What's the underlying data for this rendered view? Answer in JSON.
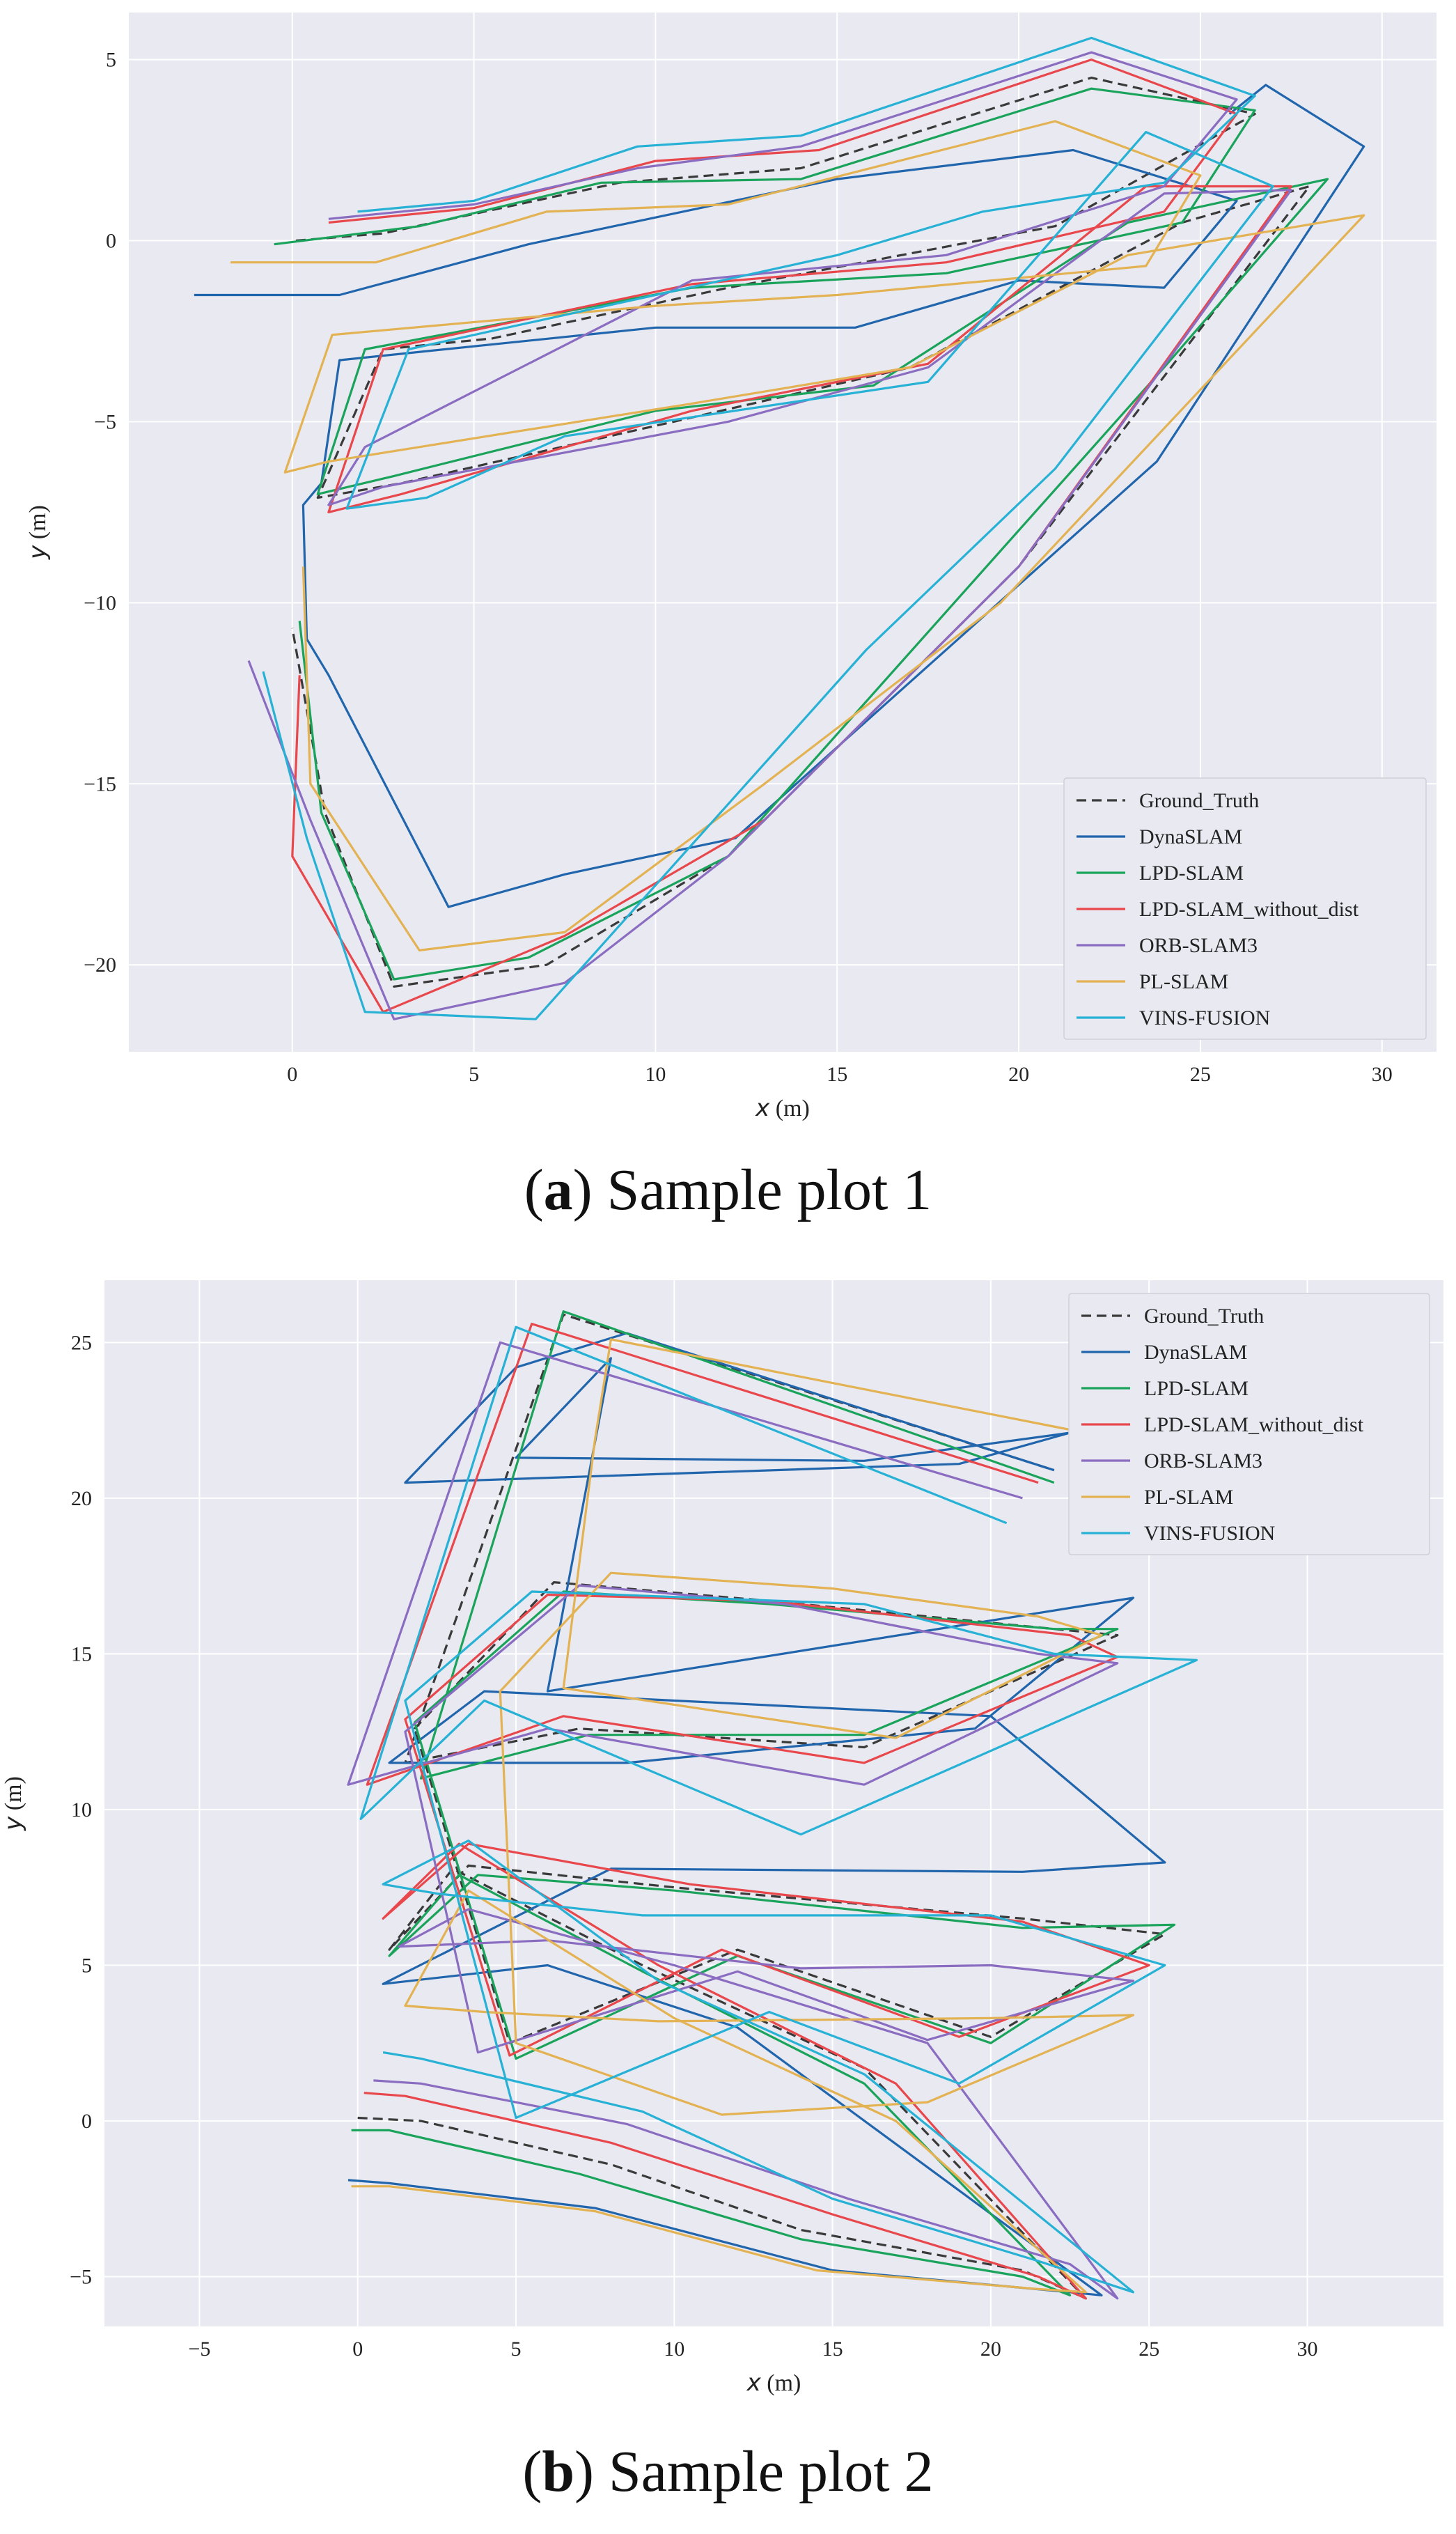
{
  "colors": {
    "Ground_Truth": "#3a3a3a",
    "DynaSLAM": "#2166ac",
    "LPD-SLAM": "#1aa35a",
    "LPD-SLAM_without_dist": "#e8474c",
    "ORB-SLAM3": "#8a6cc0",
    "PL-SLAM": "#e3b253",
    "VINS-FUSION": "#27b1d5"
  },
  "captions": [
    {
      "letter": "a",
      "text": " Sample plot 1",
      "open": "(",
      "close": ")"
    },
    {
      "letter": "b",
      "text": " Sample plot 2",
      "open": "(",
      "close": ")"
    }
  ],
  "chart_data": [
    {
      "type": "line",
      "title": "Sample plot 1",
      "xlabel": "x (m)",
      "ylabel": "y (m)",
      "xlabel_var": "x",
      "xlabel_unit": " (m)",
      "ylabel_var": "y",
      "ylabel_unit": " (m)",
      "xlim": [
        -4.5,
        31.5
      ],
      "ylim": [
        -22.4,
        6.3
      ],
      "xticks": [
        0,
        5,
        10,
        15,
        20,
        25,
        30
      ],
      "yticks": [
        5,
        0,
        -5,
        -10,
        -15,
        -20
      ],
      "xtick_labels": [
        "0",
        "5",
        "10",
        "15",
        "20",
        "25",
        "30"
      ],
      "ytick_labels": [
        "5",
        "0",
        "−5",
        "−10",
        "−15",
        "−20"
      ],
      "legend_position": "lower-right",
      "series": [
        {
          "name": "Ground_Truth",
          "dashed": true,
          "x": [
            0.1,
            2.5,
            9,
            14,
            22,
            26.5,
            21,
            12,
            5.5,
            2.5,
            0.7,
            3,
            10.5,
            17,
            24.5,
            28,
            20,
            12,
            7,
            2.8,
            0.9,
            0
          ],
          "y": [
            0,
            0.2,
            1.6,
            2,
            4.5,
            3.5,
            0.4,
            -1.3,
            -2.7,
            -3,
            -7.1,
            -6.7,
            -5,
            -3.5,
            0.5,
            1.5,
            -9,
            -17,
            -20,
            -20.6,
            -15.8,
            -10.7
          ]
        },
        {
          "name": "DynaSLAM",
          "dashed": false,
          "x": [
            -2.7,
            1.3,
            6.5,
            15,
            21.5,
            26,
            24,
            20,
            15.5,
            10,
            1.3,
            0.8,
            0.3,
            0.4,
            1,
            4.3,
            7.5,
            12.2,
            23.8,
            29.5,
            26.8,
            25.8
          ],
          "y": [
            -1.5,
            -1.5,
            -0.1,
            1.7,
            2.5,
            1.1,
            -1.3,
            -1.1,
            -2.4,
            -2.4,
            -3.3,
            -6.7,
            -7.3,
            -11,
            -12,
            -18.4,
            -17.5,
            -16.5,
            -6.1,
            2.6,
            4.3,
            3.5
          ]
        },
        {
          "name": "LPD-SLAM",
          "dashed": false,
          "x": [
            -0.5,
            3.5,
            8.5,
            14,
            22,
            26.5,
            24.5,
            18,
            11,
            2,
            0.7,
            2.8,
            10,
            16,
            23,
            28.5,
            24,
            12,
            6.5,
            2.8,
            0.8,
            0.2
          ],
          "y": [
            -0.1,
            0.4,
            1.6,
            1.7,
            4.2,
            3.6,
            0.5,
            -0.9,
            -1.3,
            -3,
            -7,
            -6.5,
            -4.7,
            -4,
            0.5,
            1.7,
            -3.5,
            -17,
            -19.8,
            -20.4,
            -15.8,
            -10.5
          ]
        },
        {
          "name": "LPD-SLAM_without_dist",
          "dashed": false,
          "x": [
            1,
            5,
            10,
            14.5,
            22,
            26,
            24,
            18,
            11,
            2.5,
            1,
            3,
            11,
            17.5,
            23.5,
            27.5,
            20,
            13,
            7.5,
            2.5,
            0,
            0.2
          ],
          "y": [
            0.5,
            0.9,
            2.2,
            2.5,
            5,
            3.5,
            0.8,
            -0.6,
            -1.2,
            -3,
            -7.5,
            -7,
            -4.7,
            -3.4,
            1.5,
            1.5,
            -9,
            -16,
            -19.2,
            -21.3,
            -17,
            -12
          ]
        },
        {
          "name": "ORB-SLAM3",
          "dashed": false,
          "x": [
            1,
            5,
            9.5,
            14,
            22,
            26,
            24,
            18,
            11,
            2,
            1,
            2.5,
            12,
            17.5,
            24,
            27.5,
            20,
            12,
            7.5,
            2.8,
            0.5,
            -1.2
          ],
          "y": [
            0.6,
            1,
            2,
            2.6,
            5.2,
            3.9,
            1.5,
            -0.4,
            -1.1,
            -5.7,
            -7.3,
            -6.8,
            -5,
            -3.5,
            1.3,
            1.4,
            -9,
            -17,
            -20.5,
            -21.5,
            -16,
            -11.6
          ]
        },
        {
          "name": "PL-SLAM",
          "dashed": false,
          "x": [
            -1.7,
            2.3,
            7,
            12,
            21,
            25,
            23.5,
            15,
            10,
            1.1,
            -0.2,
            1,
            11,
            17,
            23,
            29.5,
            19.5,
            13,
            7.5,
            3.5,
            0.5,
            0.3
          ],
          "y": [
            -0.6,
            -0.6,
            0.8,
            1,
            3.3,
            1.8,
            -0.7,
            -1.5,
            -1.8,
            -2.6,
            -6.4,
            -6.1,
            -4.5,
            -3.5,
            -0.4,
            0.7,
            -10,
            -15,
            -19.1,
            -19.6,
            -15,
            -9
          ]
        },
        {
          "name": "VINS-FUSION",
          "dashed": false,
          "x": [
            1.8,
            5,
            9.5,
            14,
            22,
            26.5,
            24,
            19,
            15,
            3.2,
            1.5,
            3.7,
            7.5,
            17.5,
            23.5,
            27,
            21,
            15.8,
            6.7,
            2,
            0.4,
            -0.8
          ],
          "y": [
            0.8,
            1.1,
            2.6,
            2.9,
            5.6,
            4,
            1.6,
            0.8,
            -0.4,
            -3,
            -7.4,
            -7.1,
            -5.4,
            -3.9,
            3,
            1.5,
            -6.3,
            -11.3,
            -21.5,
            -21.3,
            -16.5,
            -11.9
          ]
        }
      ]
    },
    {
      "type": "line",
      "title": "Sample plot 2",
      "xlabel": "x (m)",
      "ylabel": "y (m)",
      "xlabel_var": "x",
      "xlabel_unit": " (m)",
      "ylabel_var": "y",
      "ylabel_unit": " (m)",
      "xlim": [
        -8,
        34.3
      ],
      "ylim": [
        -6.6,
        27
      ],
      "xticks": [
        -5,
        0,
        5,
        10,
        15,
        20,
        25,
        30
      ],
      "yticks": [
        25,
        20,
        15,
        10,
        5,
        0,
        -5
      ],
      "xtick_labels": [
        "−5",
        "0",
        "5",
        "10",
        "15",
        "20",
        "25",
        "30"
      ],
      "ytick_labels": [
        "25",
        "20",
        "15",
        "10",
        "5",
        "0",
        "−5"
      ],
      "legend_position": "top-right",
      "series": [
        {
          "name": "Ground_Truth",
          "dashed": true,
          "x": [
            0,
            2,
            8,
            14,
            21,
            23,
            16,
            9,
            3,
            1,
            3.5,
            10,
            21,
            25.5,
            20,
            12,
            4.8,
            1.8,
            6.2,
            13,
            22,
            24,
            16,
            7,
            1.5,
            6.5,
            22
          ],
          "y": [
            0.1,
            0,
            -1.4,
            -3.5,
            -4.8,
            -5.7,
            1.7,
            5,
            8.1,
            5.5,
            8.2,
            7.5,
            6.5,
            6,
            2.7,
            5.5,
            2.5,
            12.6,
            17.3,
            16.7,
            15.8,
            15.6,
            12,
            12.6,
            11.5,
            25.9,
            20.9
          ]
        },
        {
          "name": "DynaSLAM",
          "dashed": false,
          "x": [
            -0.3,
            1,
            7.5,
            15,
            22.5,
            23.5,
            12,
            6,
            0.8,
            8,
            21,
            25.5,
            20,
            4,
            1,
            8.5,
            19.5,
            24.5,
            6,
            8,
            5,
            16,
            22.5,
            19,
            1.5,
            5,
            8.5,
            22
          ],
          "y": [
            -1.9,
            -2,
            -2.8,
            -4.8,
            -5.5,
            -5.6,
            3,
            5,
            4.4,
            8.1,
            8,
            8.3,
            13,
            13.8,
            11.5,
            11.5,
            12.6,
            16.8,
            13.8,
            24.5,
            21.3,
            21.2,
            22.1,
            21.1,
            20.5,
            24.2,
            25.3,
            20.9
          ]
        },
        {
          "name": "LPD-SLAM",
          "dashed": false,
          "x": [
            -0.2,
            1,
            7,
            14,
            21,
            22.5,
            16,
            9,
            3.2,
            1,
            3.8,
            10,
            21,
            25.8,
            20,
            12,
            5,
            1.8,
            6.5,
            13,
            22,
            24,
            16,
            7.3,
            2,
            6.5,
            22
          ],
          "y": [
            -0.3,
            -0.3,
            -1.7,
            -3.8,
            -5,
            -5.6,
            1.2,
            4.8,
            7.9,
            5.3,
            7.9,
            7.4,
            6.2,
            6.3,
            2.5,
            5.3,
            2,
            12.8,
            17,
            16.6,
            15.8,
            15.8,
            12.4,
            12.4,
            11,
            26,
            20.5
          ]
        },
        {
          "name": "LPD-SLAM_without_dist",
          "dashed": false,
          "x": [
            0.2,
            1.5,
            8,
            15,
            21.5,
            23,
            17,
            9.5,
            3.2,
            0.8,
            3.5,
            10.5,
            21,
            25,
            19,
            11.5,
            4.8,
            1.5,
            6,
            13,
            22.5,
            24,
            16,
            6.5,
            0.3,
            5.5,
            21.5
          ],
          "y": [
            0.9,
            0.8,
            -0.7,
            -3,
            -5,
            -5.7,
            1.2,
            5,
            8.9,
            6.5,
            8.9,
            7.6,
            6.4,
            5,
            2.7,
            5.5,
            2.1,
            12.9,
            16.9,
            16.7,
            15.6,
            14.9,
            11.5,
            13,
            10.8,
            25.6,
            20.5
          ]
        },
        {
          "name": "ORB-SLAM3",
          "dashed": false,
          "x": [
            0.5,
            2,
            8.5,
            15.5,
            22.5,
            24,
            18,
            10,
            3.5,
            1.3,
            6,
            14,
            20,
            24.5,
            18,
            12,
            3.8,
            1.5,
            7,
            13.5,
            21.5,
            24,
            16,
            6,
            -0.3,
            4.5,
            21
          ],
          "y": [
            1.3,
            1.2,
            -0.1,
            -2.5,
            -4.6,
            -5.7,
            2.5,
            5,
            6.8,
            5.6,
            5.8,
            4.9,
            5,
            4.5,
            2.6,
            4.8,
            2.2,
            12.5,
            17.2,
            16.6,
            15,
            14.7,
            10.8,
            12.6,
            10.8,
            25,
            20
          ]
        },
        {
          "name": "PL-SLAM",
          "dashed": false,
          "x": [
            -0.2,
            1,
            7.5,
            14.5,
            21.5,
            23,
            17,
            10,
            3.5,
            1.5,
            4,
            9.5,
            20,
            24.5,
            18,
            11.5,
            5,
            4.5,
            8,
            15,
            21.5,
            23.5,
            17,
            6.5,
            7.5,
            8,
            22.5
          ],
          "y": [
            -2.1,
            -2.1,
            -2.9,
            -4.8,
            -5.4,
            -5.5,
            0,
            3.3,
            7.4,
            3.7,
            3.5,
            3.2,
            3.3,
            3.4,
            0.6,
            0.2,
            2.5,
            13.8,
            17.6,
            17.1,
            16.2,
            15.6,
            12.3,
            13.9,
            21.9,
            25.1,
            22.2
          ]
        },
        {
          "name": "VINS-FUSION",
          "dashed": false,
          "x": [
            0.8,
            2,
            9,
            15,
            21.5,
            24.5,
            16,
            9.5,
            3.5,
            0.8,
            2.5,
            9,
            20,
            25.5,
            19,
            13,
            5,
            1.5,
            5.5,
            16,
            22,
            26.5,
            14,
            4,
            0.1,
            5,
            20.5
          ],
          "y": [
            2.2,
            2,
            0.3,
            -2.5,
            -4.5,
            -5.5,
            1.5,
            4.5,
            9,
            7.6,
            7.3,
            6.6,
            6.6,
            5,
            1.2,
            3.5,
            0.1,
            13.5,
            17,
            16.6,
            15,
            14.8,
            9.2,
            13.5,
            9.7,
            25.5,
            19.2
          ]
        }
      ]
    }
  ]
}
